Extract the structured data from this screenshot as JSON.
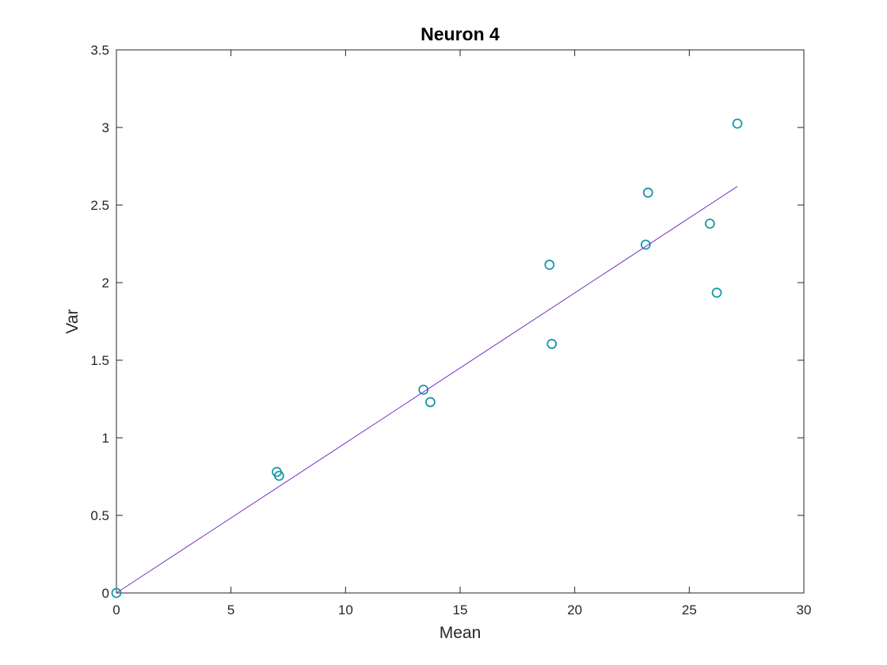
{
  "chart_data": {
    "type": "scatter",
    "title": "Neuron 4",
    "xlabel": "Mean",
    "ylabel": "Var",
    "xlim": [
      0,
      30
    ],
    "ylim": [
      0,
      3.5
    ],
    "xticks": [
      0,
      5,
      10,
      15,
      20,
      25,
      30
    ],
    "yticks": [
      0,
      0.5,
      1,
      1.5,
      2,
      2.5,
      3,
      3.5
    ],
    "xtick_labels": [
      "0",
      "5",
      "10",
      "15",
      "20",
      "25",
      "30"
    ],
    "ytick_labels": [
      "0",
      "0.5",
      "1",
      "1.5",
      "2",
      "2.5",
      "3",
      "3.5"
    ],
    "grid": false,
    "series": [
      {
        "type": "scatter",
        "marker": "circle-open",
        "color": "#1b98a6",
        "x": [
          0,
          7.0,
          7.1,
          13.4,
          13.7,
          18.9,
          19.0,
          23.1,
          23.2,
          25.9,
          26.2,
          27.1
        ],
        "y": [
          0,
          0.78,
          0.755,
          1.31,
          1.23,
          2.115,
          1.605,
          2.245,
          2.58,
          2.38,
          1.935,
          3.025
        ]
      },
      {
        "type": "line",
        "color": "#7a2fd0",
        "x": [
          0,
          27.1
        ],
        "y": [
          0,
          2.62
        ]
      }
    ]
  }
}
